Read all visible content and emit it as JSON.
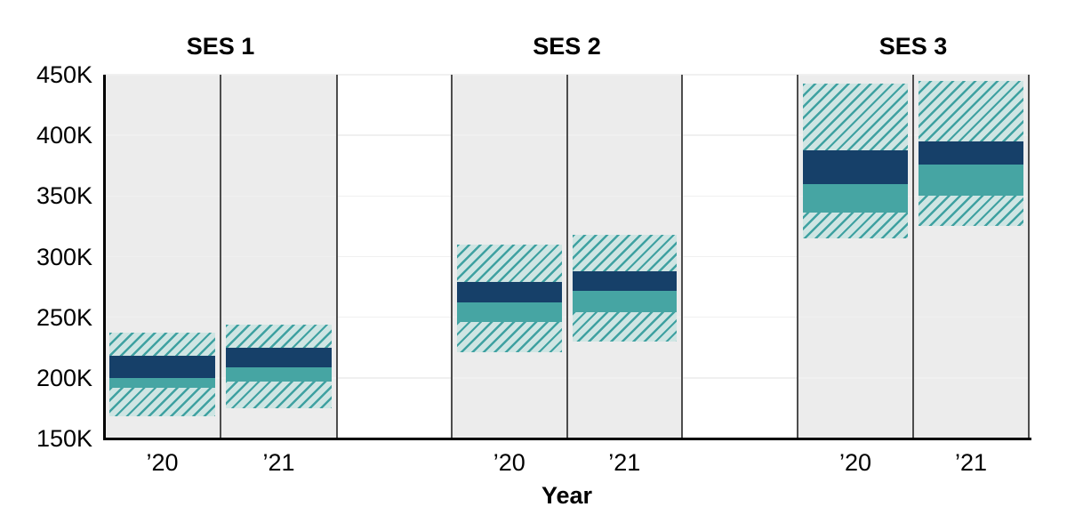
{
  "chart_data": {
    "type": "interval-bands",
    "xlabel": "Year",
    "value_unit": "K",
    "ylim": [
      150,
      450
    ],
    "yticks": [
      {
        "value": 450,
        "label": "450K"
      },
      {
        "value": 400,
        "label": "400K"
      },
      {
        "value": 350,
        "label": "350K"
      },
      {
        "value": 300,
        "label": "300K"
      },
      {
        "value": 250,
        "label": "250K"
      },
      {
        "value": 200,
        "label": "200K"
      },
      {
        "value": 150,
        "label": "150K"
      }
    ],
    "grid": "horizontal",
    "legend": "none",
    "facets": [
      {
        "title": "SES 1",
        "bars": [
          {
            "x_label": "’20",
            "outer_range": [
              168,
              237
            ],
            "mid_range": [
              192,
              200
            ],
            "dark_range": [
              200,
              218
            ]
          },
          {
            "x_label": "’21",
            "outer_range": [
              175,
              244
            ],
            "mid_range": [
              197,
              209
            ],
            "dark_range": [
              209,
              225
            ]
          }
        ]
      },
      {
        "title": "SES 2",
        "bars": [
          {
            "x_label": "’20",
            "outer_range": [
              221,
              310
            ],
            "mid_range": [
              246,
              262
            ],
            "dark_range": [
              262,
              279
            ]
          },
          {
            "x_label": "’21",
            "outer_range": [
              230,
              318
            ],
            "mid_range": [
              254,
              272
            ],
            "dark_range": [
              272,
              288
            ]
          }
        ]
      },
      {
        "title": "SES 3",
        "bars": [
          {
            "x_label": "’20",
            "outer_range": [
              315,
              443
            ],
            "mid_range": [
              336,
              360
            ],
            "dark_range": [
              360,
              388
            ]
          },
          {
            "x_label": "’21",
            "outer_range": [
              325,
              445
            ],
            "mid_range": [
              350,
              376
            ],
            "dark_range": [
              376,
              395
            ]
          }
        ]
      }
    ]
  },
  "colors": {
    "dark_band": "#164069",
    "mid_band": "#46A5A3",
    "hatch_background": "#CFE5E3",
    "hatch_stripe": "#3FA1A1",
    "panel_background": "#ECECEC",
    "gridline": "#F0F0F0",
    "divider_line": "#4D4D4D",
    "axis_line": "#000000",
    "text": "#000000"
  }
}
